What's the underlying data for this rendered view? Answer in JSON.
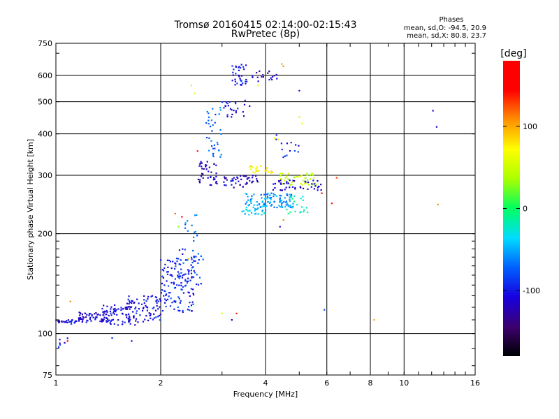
{
  "chart_data": {
    "type": "scatter",
    "title": "Tromsø 20160415 02:14:00-02:15:43",
    "subtitle": "RwPretec (8p)",
    "xlabel": "Frequency [MHz]",
    "ylabel": "Stationary phase Virtual Height [km]",
    "x_scale": "log",
    "y_scale": "log",
    "xlim": [
      1,
      16
    ],
    "ylim": [
      75,
      750
    ],
    "x_ticks": [
      1,
      2,
      4,
      6,
      8,
      10,
      16
    ],
    "y_ticks": [
      75,
      100,
      200,
      300,
      400,
      500,
      600,
      750
    ],
    "grid": true,
    "stats": {
      "header": "Phases",
      "line_o": "mean, sd,O: -94.5, 20.9",
      "line_x": "mean, sd,X:  80.8, 23.7"
    },
    "colorbar": {
      "label": "[deg]",
      "range": [
        -180,
        180
      ],
      "ticks": [
        -100,
        0,
        100
      ],
      "colors": [
        "#000000",
        "#3c0070",
        "#1800e0",
        "#0060ff",
        "#00dcff",
        "#00ff60",
        "#aaff00",
        "#ffff00",
        "#ff9000",
        "#ff0000",
        "#ff0000"
      ]
    },
    "clusters": [
      {
        "f": [
          1.0,
          1.15
        ],
        "h": [
          107,
          110
        ],
        "n": 28,
        "phase": -110
      },
      {
        "f": [
          1.15,
          1.45
        ],
        "h": [
          108,
          116
        ],
        "n": 60,
        "phase": -108
      },
      {
        "f": [
          1.35,
          1.7
        ],
        "h": [
          106,
          122
        ],
        "n": 70,
        "phase": -110
      },
      {
        "f": [
          1.6,
          2.0
        ],
        "h": [
          108,
          130
        ],
        "n": 80,
        "phase": -105
      },
      {
        "f": [
          2.0,
          2.5
        ],
        "h": [
          115,
          170
        ],
        "n": 120,
        "phase": -95
      },
      {
        "f": [
          2.2,
          2.65
        ],
        "h": [
          140,
          180
        ],
        "n": 45,
        "phase": -85
      },
      {
        "f": [
          2.35,
          2.55
        ],
        "h": [
          185,
          230
        ],
        "n": 14,
        "phase": -60
      },
      {
        "f": [
          2.55,
          2.9
        ],
        "h": [
          280,
          330
        ],
        "n": 40,
        "phase": -115
      },
      {
        "f": [
          2.7,
          3.0
        ],
        "h": [
          340,
          480
        ],
        "n": 35,
        "phase": -75
      },
      {
        "f": [
          3.0,
          3.6
        ],
        "h": [
          450,
          520
        ],
        "n": 25,
        "phase": -105
      },
      {
        "f": [
          3.2,
          3.55
        ],
        "h": [
          560,
          650
        ],
        "n": 35,
        "phase": -100
      },
      {
        "f": [
          3.6,
          4.4
        ],
        "h": [
          575,
          620
        ],
        "n": 18,
        "phase": -120
      },
      {
        "f": [
          3.0,
          3.8
        ],
        "h": [
          275,
          300
        ],
        "n": 45,
        "phase": -112
      },
      {
        "f": [
          3.5,
          4.8
        ],
        "h": [
          240,
          265
        ],
        "n": 110,
        "phase": -55
      },
      {
        "f": [
          3.4,
          4.0
        ],
        "h": [
          228,
          240
        ],
        "n": 25,
        "phase": -40
      },
      {
        "f": [
          3.6,
          4.2
        ],
        "h": [
          305,
          320
        ],
        "n": 22,
        "phase": 75
      },
      {
        "f": [
          4.4,
          5.6
        ],
        "h": [
          280,
          305
        ],
        "n": 50,
        "phase": 45
      },
      {
        "f": [
          4.2,
          5.8
        ],
        "h": [
          270,
          290
        ],
        "n": 45,
        "phase": -115
      },
      {
        "f": [
          4.6,
          5.3
        ],
        "h": [
          230,
          260
        ],
        "n": 20,
        "phase": -20
      },
      {
        "f": [
          4.2,
          5.0
        ],
        "h": [
          340,
          400
        ],
        "n": 14,
        "phase": -95
      },
      {
        "f": [
          1.0,
          1.08
        ],
        "h": [
          90,
          97
        ],
        "n": 6,
        "phase": -100
      }
    ],
    "isolated_points": [
      {
        "f": 4.5,
        "h": 640,
        "phase": 110
      },
      {
        "f": 4.45,
        "h": 650,
        "phase": 100
      },
      {
        "f": 4.25,
        "h": 388,
        "phase": 70
      },
      {
        "f": 4.35,
        "h": 385,
        "phase": 60
      },
      {
        "f": 5.0,
        "h": 450,
        "phase": 50
      },
      {
        "f": 5.1,
        "h": 430,
        "phase": 60
      },
      {
        "f": 2.45,
        "h": 560,
        "phase": 80
      },
      {
        "f": 2.5,
        "h": 530,
        "phase": 60
      },
      {
        "f": 2.2,
        "h": 230,
        "phase": 120
      },
      {
        "f": 2.3,
        "h": 225,
        "phase": 150
      },
      {
        "f": 2.25,
        "h": 210,
        "phase": 30
      },
      {
        "f": 4.5,
        "h": 220,
        "phase": 110
      },
      {
        "f": 4.4,
        "h": 210,
        "phase": -100
      },
      {
        "f": 6.2,
        "h": 247,
        "phase": 140
      },
      {
        "f": 6.4,
        "h": 295,
        "phase": 130
      },
      {
        "f": 5.8,
        "h": 265,
        "phase": 150
      },
      {
        "f": 12.1,
        "h": 470,
        "phase": -110
      },
      {
        "f": 12.4,
        "h": 420,
        "phase": -120
      },
      {
        "f": 12.5,
        "h": 245,
        "phase": 110
      },
      {
        "f": 3.0,
        "h": 115,
        "phase": 40
      },
      {
        "f": 3.3,
        "h": 115,
        "phase": 140
      },
      {
        "f": 3.2,
        "h": 110,
        "phase": -110
      },
      {
        "f": 5.9,
        "h": 118,
        "phase": -80
      },
      {
        "f": 8.2,
        "h": 110,
        "phase": 100
      },
      {
        "f": 1.08,
        "h": 95,
        "phase": 150
      },
      {
        "f": 1.65,
        "h": 95,
        "phase": -110
      },
      {
        "f": 1.45,
        "h": 97,
        "phase": -95
      },
      {
        "f": 1.1,
        "h": 125,
        "phase": 110
      },
      {
        "f": 2.4,
        "h": 168,
        "phase": 90
      },
      {
        "f": 2.55,
        "h": 355,
        "phase": 150
      },
      {
        "f": 3.8,
        "h": 560,
        "phase": 70
      },
      {
        "f": 5.0,
        "h": 540,
        "phase": -110
      }
    ]
  }
}
